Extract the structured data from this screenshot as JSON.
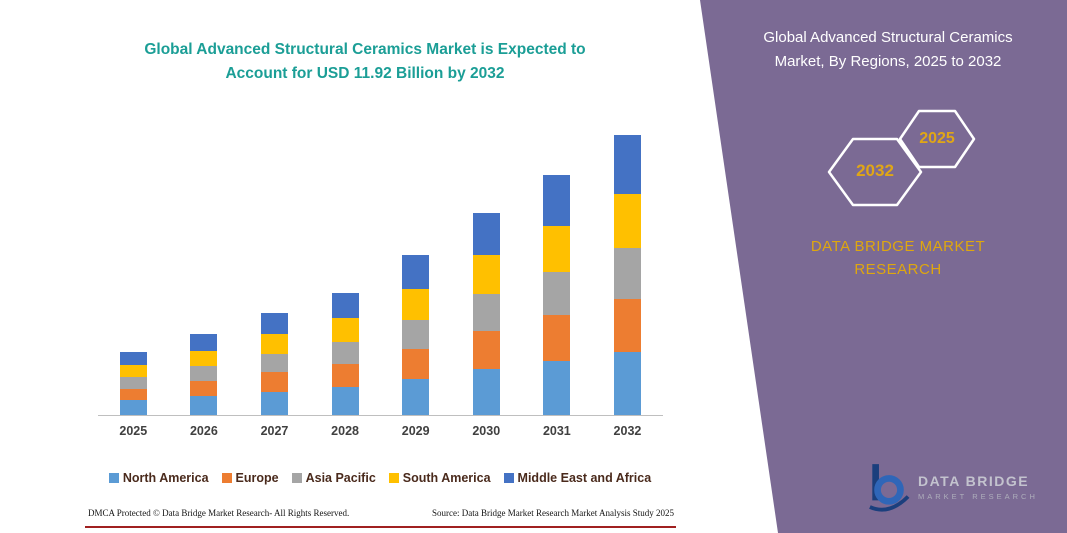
{
  "left_section": {
    "title": "Global Advanced Structural Ceramics Market is Expected to Account for USD 11.92 Billion by 2032",
    "footer_dmca": "DMCA Protected © Data Bridge Market Research-  All Rights Reserved.",
    "footer_source": "Source: Data Bridge Market Research  Market Analysis Study 2025"
  },
  "right_section": {
    "panel_title": "Global Advanced Structural Ceramics Market, By Regions, 2025 to 2032",
    "hexagon_back_year": "2032",
    "hexagon_front_year": "2025",
    "brand_text": "DATA BRIDGE MARKET RESEARCH",
    "logo_name": "DATA BRIDGE",
    "logo_tagline": "MARKET RESEARCH"
  },
  "colors": {
    "panel_purple": "#7b6a94",
    "title_teal": "#1b9e96",
    "accent_gold": "#e0a616",
    "divider_red": "#a02020"
  },
  "chart_data": {
    "type": "bar",
    "stacked": true,
    "title": "Global Advanced Structural Ceramics Market is Expected to Account for USD 11.92 Billion by 2032",
    "unit": "USD Billion",
    "categories": [
      "2025",
      "2026",
      "2027",
      "2028",
      "2029",
      "2030",
      "2031",
      "2032"
    ],
    "series": [
      {
        "name": "North America",
        "color": "#5B9BD5",
        "values": [
          0.62,
          0.8,
          1.0,
          1.2,
          1.55,
          1.95,
          2.32,
          2.7
        ]
      },
      {
        "name": "Europe",
        "color": "#ED7D31",
        "values": [
          0.5,
          0.65,
          0.82,
          0.98,
          1.28,
          1.62,
          1.92,
          2.25
        ]
      },
      {
        "name": "Asia Pacific",
        "color": "#A5A5A5",
        "values": [
          0.48,
          0.62,
          0.79,
          0.94,
          1.23,
          1.56,
          1.85,
          2.16
        ]
      },
      {
        "name": "South America",
        "color": "#FFC000",
        "values": [
          0.52,
          0.67,
          0.84,
          1.0,
          1.31,
          1.66,
          1.97,
          2.3
        ]
      },
      {
        "name": "Middle East and Africa",
        "color": "#4472C4",
        "values": [
          0.57,
          0.72,
          0.91,
          1.09,
          1.42,
          1.8,
          2.15,
          2.51
        ]
      }
    ],
    "totals": [
      2.69,
      3.46,
      4.36,
      5.21,
      6.79,
      8.59,
      10.21,
      11.92
    ],
    "ylim": [
      0,
      12
    ],
    "grid": false,
    "legend_position": "bottom",
    "y_axis_visible": false
  }
}
